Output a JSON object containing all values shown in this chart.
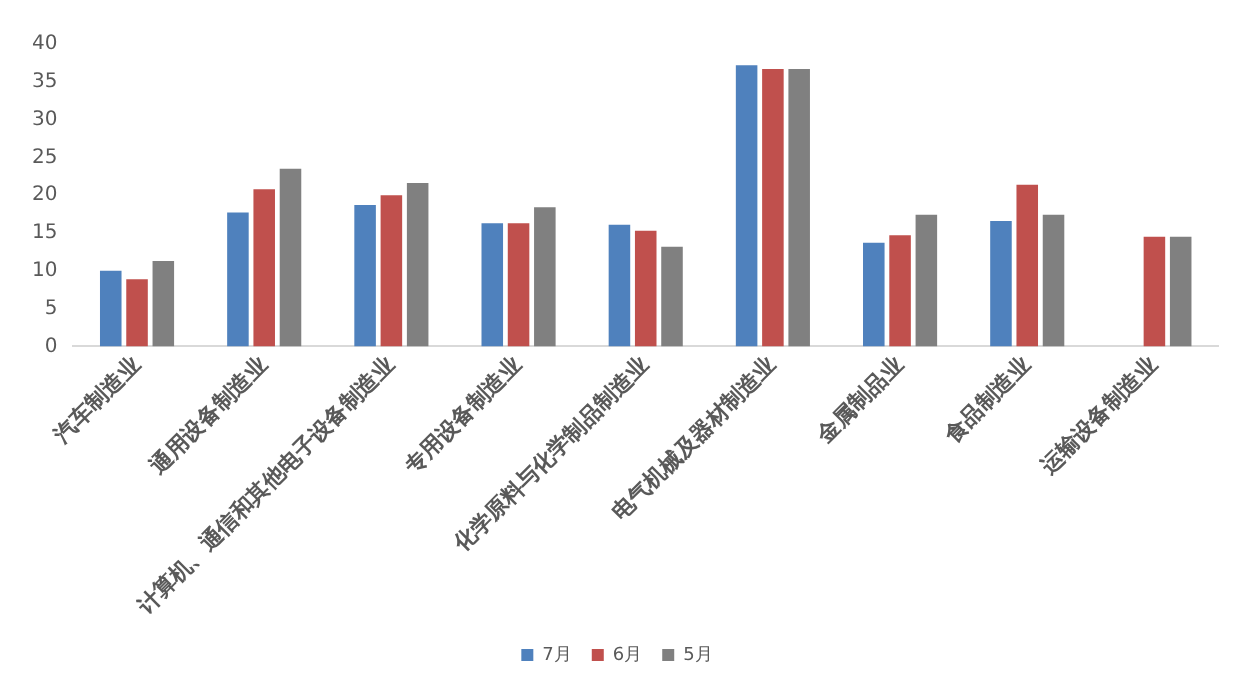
{
  "chart_data": {
    "type": "bar",
    "categories": [
      "汽车制造业",
      "通用设备制造业",
      "计算机、通信和其他电子设备制造业",
      "专用设备制造业",
      "化学原料与化学制品制造业",
      "电气机械及器材制造业",
      "金属制品业",
      "食品制造业",
      "运输设备制造业"
    ],
    "series": [
      {
        "name": "7月",
        "color": "#4f81bd",
        "values": [
          10.0,
          17.7,
          18.7,
          16.3,
          16.1,
          37.2,
          13.7,
          16.6,
          null
        ]
      },
      {
        "name": "6月",
        "color": "#c0504d",
        "values": [
          8.9,
          20.8,
          20.0,
          16.3,
          15.3,
          36.7,
          14.7,
          21.4,
          14.5
        ]
      },
      {
        "name": "5月",
        "color": "#808080",
        "values": [
          11.3,
          23.5,
          21.6,
          18.4,
          13.2,
          36.7,
          17.4,
          17.4,
          14.5
        ]
      }
    ],
    "ylim": [
      0,
      40
    ],
    "yticks": [
      0,
      5,
      10,
      15,
      20,
      25,
      30,
      35,
      40
    ],
    "grid": false,
    "legend": "bottom"
  }
}
